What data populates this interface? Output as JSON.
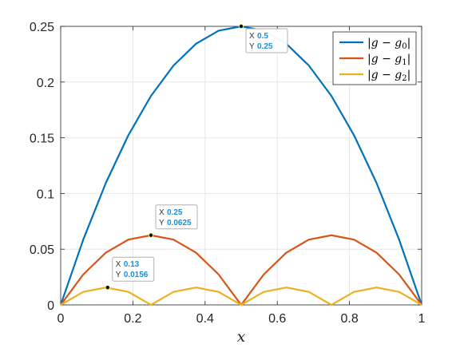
{
  "chart_data": {
    "type": "line",
    "title": "",
    "xlabel": "x",
    "ylabel": "",
    "xlim": [
      0,
      1
    ],
    "ylim": [
      0,
      0.25
    ],
    "xticks": [
      0,
      0.2,
      0.4,
      0.6,
      0.8,
      1
    ],
    "yticks": [
      0,
      0.05,
      0.1,
      0.15,
      0.2,
      0.25
    ],
    "xtick_labels": [
      "0",
      "0.2",
      "0.4",
      "0.6",
      "0.8",
      "1"
    ],
    "ytick_labels": [
      "0",
      "0.05",
      "0.1",
      "0.15",
      "0.2",
      "0.25"
    ],
    "grid": true,
    "legend_position": "top-right",
    "x": [
      0,
      0.0625,
      0.125,
      0.1875,
      0.25,
      0.3125,
      0.375,
      0.4375,
      0.5,
      0.5625,
      0.625,
      0.6875,
      0.75,
      0.8125,
      0.875,
      0.9375,
      1
    ],
    "series": [
      {
        "name": "|g − g0|",
        "legend": {
          "base": "|g − g",
          "sub": "0",
          "close": "|"
        },
        "color": "#0072BD",
        "values": [
          0,
          0.0586,
          0.1094,
          0.1523,
          0.1875,
          0.2148,
          0.2344,
          0.2461,
          0.25,
          0.2461,
          0.2344,
          0.2148,
          0.1875,
          0.1523,
          0.1094,
          0.0586,
          0
        ]
      },
      {
        "name": "|g − g1|",
        "legend": {
          "base": "|g − g",
          "sub": "1",
          "close": "|"
        },
        "color": "#D95319",
        "values": [
          0,
          0.0273,
          0.0469,
          0.0586,
          0.0625,
          0.0586,
          0.0469,
          0.0273,
          0,
          0.0273,
          0.0469,
          0.0586,
          0.0625,
          0.0586,
          0.0469,
          0.0273,
          0
        ]
      },
      {
        "name": "|g − g2|",
        "legend": {
          "base": "|g − g",
          "sub": "2",
          "close": "|"
        },
        "color": "#EDB120",
        "values": [
          0,
          0.0117,
          0.0156,
          0.0117,
          0,
          0.0117,
          0.0156,
          0.0117,
          0,
          0.0117,
          0.0156,
          0.0117,
          0,
          0.0117,
          0.0156,
          0.0117,
          0
        ]
      }
    ],
    "datatips": [
      {
        "x": 0.5,
        "y": 0.25,
        "x_text": "0.5",
        "y_text": "0.25",
        "x_label": "X",
        "y_label": "Y"
      },
      {
        "x": 0.25,
        "y": 0.0625,
        "x_text": "0.25",
        "y_text": "0.0625",
        "x_label": "X",
        "y_label": "Y"
      },
      {
        "x": 0.13,
        "y": 0.0156,
        "x_text": "0.13",
        "y_text": "0.0156",
        "x_label": "X",
        "y_label": "Y"
      }
    ]
  }
}
